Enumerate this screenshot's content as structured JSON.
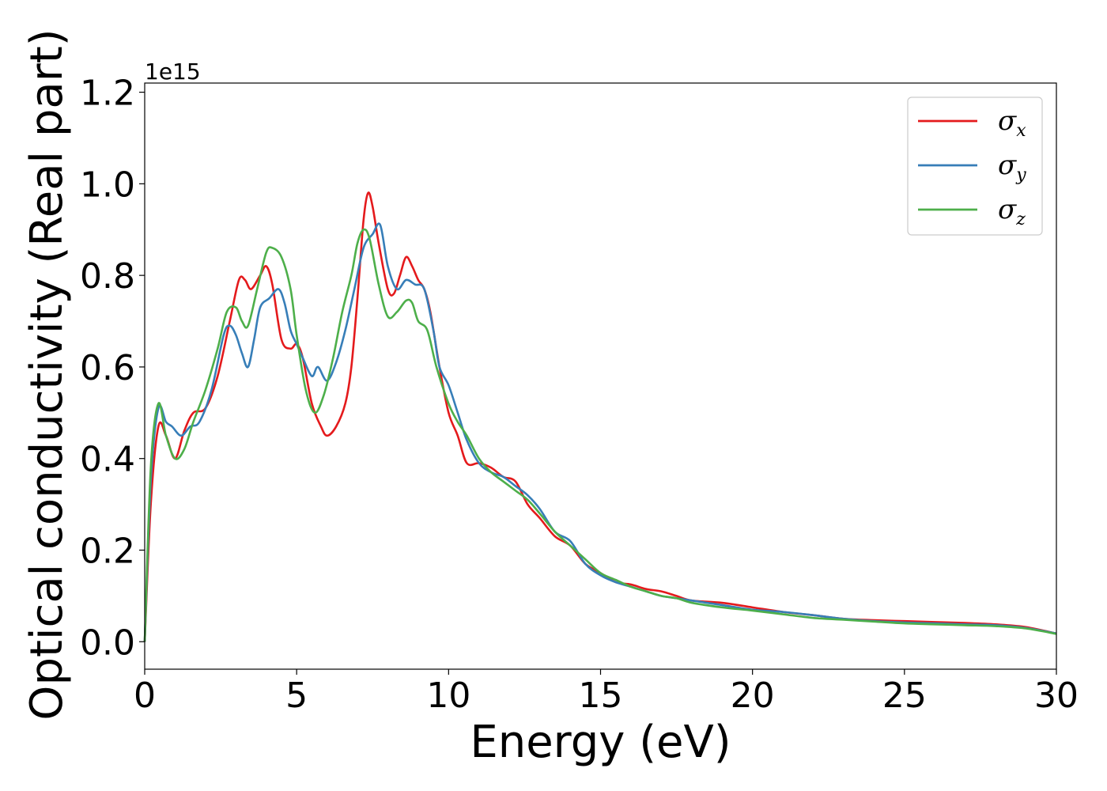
{
  "chart_data": {
    "type": "line",
    "title": "",
    "xlabel": "Energy (eV)",
    "ylabel": "Optical conductivity (Real part)",
    "y_offset_label": "1e15",
    "xlim": [
      0,
      30
    ],
    "ylim": [
      -0.06,
      1.22
    ],
    "x_ticks": [
      0,
      5,
      10,
      15,
      20,
      25,
      30
    ],
    "x_tick_labels": [
      "0",
      "5",
      "10",
      "15",
      "20",
      "25",
      "30"
    ],
    "y_ticks": [
      0.0,
      0.2,
      0.4,
      0.6,
      0.8,
      1.0,
      1.2
    ],
    "y_tick_labels": [
      "0.0",
      "0.2",
      "0.4",
      "0.6",
      "0.8",
      "1.0",
      "1.2"
    ],
    "grid": false,
    "legend_position": "top-right",
    "series": [
      {
        "name": "σx",
        "symbol": "σ",
        "subscript": "x",
        "color": "#e41a1c",
        "x": [
          0,
          0.2,
          0.45,
          0.7,
          1.0,
          1.3,
          1.6,
          2.0,
          2.4,
          2.8,
          3.1,
          3.3,
          3.5,
          3.8,
          4.0,
          4.2,
          4.5,
          4.8,
          5.0,
          5.2,
          5.5,
          5.8,
          6.0,
          6.3,
          6.6,
          6.8,
          7.0,
          7.2,
          7.35,
          7.5,
          7.7,
          8.0,
          8.2,
          8.4,
          8.6,
          8.8,
          9.0,
          9.2,
          9.4,
          9.7,
          10.0,
          10.3,
          10.6,
          11.0,
          11.4,
          11.8,
          12.2,
          12.6,
          13.0,
          13.5,
          14.0,
          14.5,
          15.0,
          15.5,
          16.0,
          16.5,
          17.0,
          17.5,
          18.0,
          19.0,
          20.0,
          21.0,
          22.0,
          23.0,
          24.0,
          25.0,
          26.0,
          27.0,
          28.0,
          29.0,
          30.0
        ],
        "y": [
          0.0,
          0.3,
          0.47,
          0.45,
          0.4,
          0.46,
          0.5,
          0.51,
          0.58,
          0.7,
          0.79,
          0.79,
          0.77,
          0.8,
          0.82,
          0.78,
          0.66,
          0.64,
          0.65,
          0.62,
          0.52,
          0.47,
          0.45,
          0.47,
          0.52,
          0.6,
          0.75,
          0.92,
          0.98,
          0.95,
          0.87,
          0.77,
          0.76,
          0.8,
          0.84,
          0.82,
          0.79,
          0.77,
          0.72,
          0.6,
          0.5,
          0.45,
          0.39,
          0.39,
          0.38,
          0.36,
          0.35,
          0.3,
          0.27,
          0.23,
          0.21,
          0.17,
          0.15,
          0.13,
          0.125,
          0.115,
          0.11,
          0.1,
          0.09,
          0.085,
          0.075,
          0.065,
          0.058,
          0.05,
          0.047,
          0.045,
          0.043,
          0.041,
          0.038,
          0.032,
          0.018
        ]
      },
      {
        "name": "σy",
        "symbol": "σ",
        "subscript": "y",
        "color": "#377eb8",
        "x": [
          0,
          0.2,
          0.45,
          0.7,
          0.9,
          1.2,
          1.5,
          1.8,
          2.2,
          2.6,
          2.8,
          3.0,
          3.2,
          3.4,
          3.6,
          3.8,
          4.1,
          4.4,
          4.6,
          4.8,
          5.0,
          5.2,
          5.5,
          5.7,
          6.0,
          6.3,
          6.6,
          6.9,
          7.2,
          7.5,
          7.75,
          8.0,
          8.3,
          8.6,
          8.9,
          9.2,
          9.5,
          9.7,
          10.0,
          10.3,
          10.6,
          11.0,
          11.4,
          11.8,
          12.2,
          12.6,
          13.0,
          13.5,
          14.0,
          14.5,
          15.0,
          15.5,
          16.0,
          16.5,
          17.0,
          17.5,
          18.0,
          19.0,
          20.0,
          21.0,
          22.0,
          23.0,
          24.0,
          25.0,
          26.0,
          27.0,
          28.0,
          29.0,
          30.0
        ],
        "y": [
          0.0,
          0.35,
          0.51,
          0.48,
          0.47,
          0.45,
          0.47,
          0.48,
          0.55,
          0.67,
          0.69,
          0.67,
          0.63,
          0.6,
          0.66,
          0.73,
          0.75,
          0.77,
          0.74,
          0.68,
          0.65,
          0.62,
          0.58,
          0.6,
          0.57,
          0.61,
          0.68,
          0.77,
          0.86,
          0.89,
          0.91,
          0.82,
          0.77,
          0.79,
          0.78,
          0.77,
          0.68,
          0.6,
          0.56,
          0.5,
          0.44,
          0.39,
          0.37,
          0.36,
          0.34,
          0.32,
          0.29,
          0.24,
          0.22,
          0.17,
          0.145,
          0.13,
          0.12,
          0.11,
          0.1,
          0.095,
          0.09,
          0.08,
          0.07,
          0.065,
          0.058,
          0.05,
          0.045,
          0.042,
          0.04,
          0.038,
          0.036,
          0.03,
          0.018
        ]
      },
      {
        "name": "σz",
        "symbol": "σ",
        "subscript": "z",
        "color": "#4daf4a",
        "x": [
          0,
          0.2,
          0.45,
          0.7,
          1.0,
          1.3,
          1.6,
          2.0,
          2.4,
          2.7,
          3.0,
          3.2,
          3.4,
          3.7,
          4.0,
          4.2,
          4.5,
          4.8,
          5.0,
          5.3,
          5.6,
          5.9,
          6.2,
          6.5,
          6.8,
          7.0,
          7.2,
          7.4,
          7.7,
          8.0,
          8.3,
          8.6,
          8.8,
          9.0,
          9.3,
          9.6,
          10.0,
          10.3,
          10.6,
          11.0,
          11.4,
          11.8,
          12.2,
          12.6,
          13.0,
          13.5,
          14.0,
          14.5,
          15.0,
          15.5,
          16.0,
          16.5,
          17.0,
          17.5,
          18.0,
          19.0,
          20.0,
          21.0,
          22.0,
          23.0,
          24.0,
          25.0,
          26.0,
          27.0,
          28.0,
          29.0,
          30.0
        ],
        "y": [
          0.0,
          0.38,
          0.52,
          0.45,
          0.4,
          0.42,
          0.48,
          0.55,
          0.64,
          0.72,
          0.73,
          0.7,
          0.69,
          0.77,
          0.85,
          0.86,
          0.84,
          0.77,
          0.67,
          0.55,
          0.5,
          0.54,
          0.62,
          0.72,
          0.8,
          0.87,
          0.9,
          0.88,
          0.78,
          0.71,
          0.72,
          0.745,
          0.74,
          0.7,
          0.68,
          0.6,
          0.52,
          0.48,
          0.45,
          0.4,
          0.37,
          0.35,
          0.33,
          0.31,
          0.28,
          0.24,
          0.21,
          0.18,
          0.15,
          0.135,
          0.12,
          0.11,
          0.1,
          0.095,
          0.085,
          0.075,
          0.068,
          0.06,
          0.052,
          0.048,
          0.044,
          0.04,
          0.038,
          0.036,
          0.034,
          0.029,
          0.017
        ]
      }
    ]
  }
}
